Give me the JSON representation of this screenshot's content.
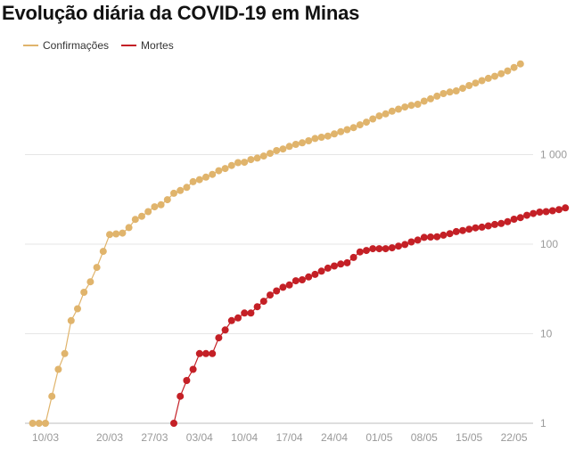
{
  "title": "Evolução diária da COVID-19 em Minas",
  "chart_data": {
    "type": "line",
    "title": "Evolução diária da COVID-19 em Minas",
    "xlabel": "",
    "ylabel": "",
    "y_scale": "log",
    "ylim": [
      1,
      10000
    ],
    "grid": true,
    "legend_position": "top-left",
    "x_ticks": [
      "10/03",
      "20/03",
      "27/03",
      "03/04",
      "10/04",
      "17/04",
      "24/04",
      "01/05",
      "08/05",
      "15/05",
      "22/05"
    ],
    "y_ticks": [
      {
        "value": 1,
        "label": "1"
      },
      {
        "value": 10,
        "label": "10"
      },
      {
        "value": 100,
        "label": "100"
      },
      {
        "value": 1000,
        "label": "1 000"
      }
    ],
    "series": [
      {
        "name": "Confirmações",
        "color": "#e0b46c",
        "start_date": "2020-03-08",
        "values": [
          1,
          1,
          1,
          2,
          4,
          6,
          14,
          19,
          29,
          38,
          55,
          83,
          128,
          130,
          133,
          153,
          189,
          205,
          231,
          261,
          275,
          314,
          370,
          397,
          430,
          498,
          525,
          560,
          601,
          660,
          700,
          756,
          814,
          822,
          880,
          915,
          963,
          1033,
          1109,
          1156,
          1235,
          1301,
          1354,
          1427,
          1514,
          1565,
          1610,
          1700,
          1800,
          1900,
          2000,
          2150,
          2300,
          2500,
          2700,
          2850,
          3050,
          3220,
          3400,
          3550,
          3650,
          3950,
          4200,
          4500,
          4800,
          5000,
          5150,
          5500,
          5900,
          6300,
          6700,
          7100,
          7500,
          8000,
          8600,
          9400,
          10300
        ]
      },
      {
        "name": "Mortes",
        "color": "#c42026",
        "start_date": "2020-03-30",
        "values": [
          1,
          2,
          3,
          4,
          6,
          6,
          6,
          9,
          11,
          14,
          15,
          17,
          17,
          20,
          23,
          27,
          30,
          33,
          35,
          39,
          40,
          43,
          46,
          50,
          54,
          57,
          60,
          62,
          71,
          82,
          85,
          89,
          89,
          89,
          91,
          95,
          99,
          106,
          111,
          119,
          120,
          121,
          126,
          131,
          138,
          142,
          147,
          152,
          155,
          160,
          166,
          170,
          178,
          190,
          198,
          210,
          220,
          228,
          231,
          236,
          243,
          254
        ]
      }
    ]
  }
}
